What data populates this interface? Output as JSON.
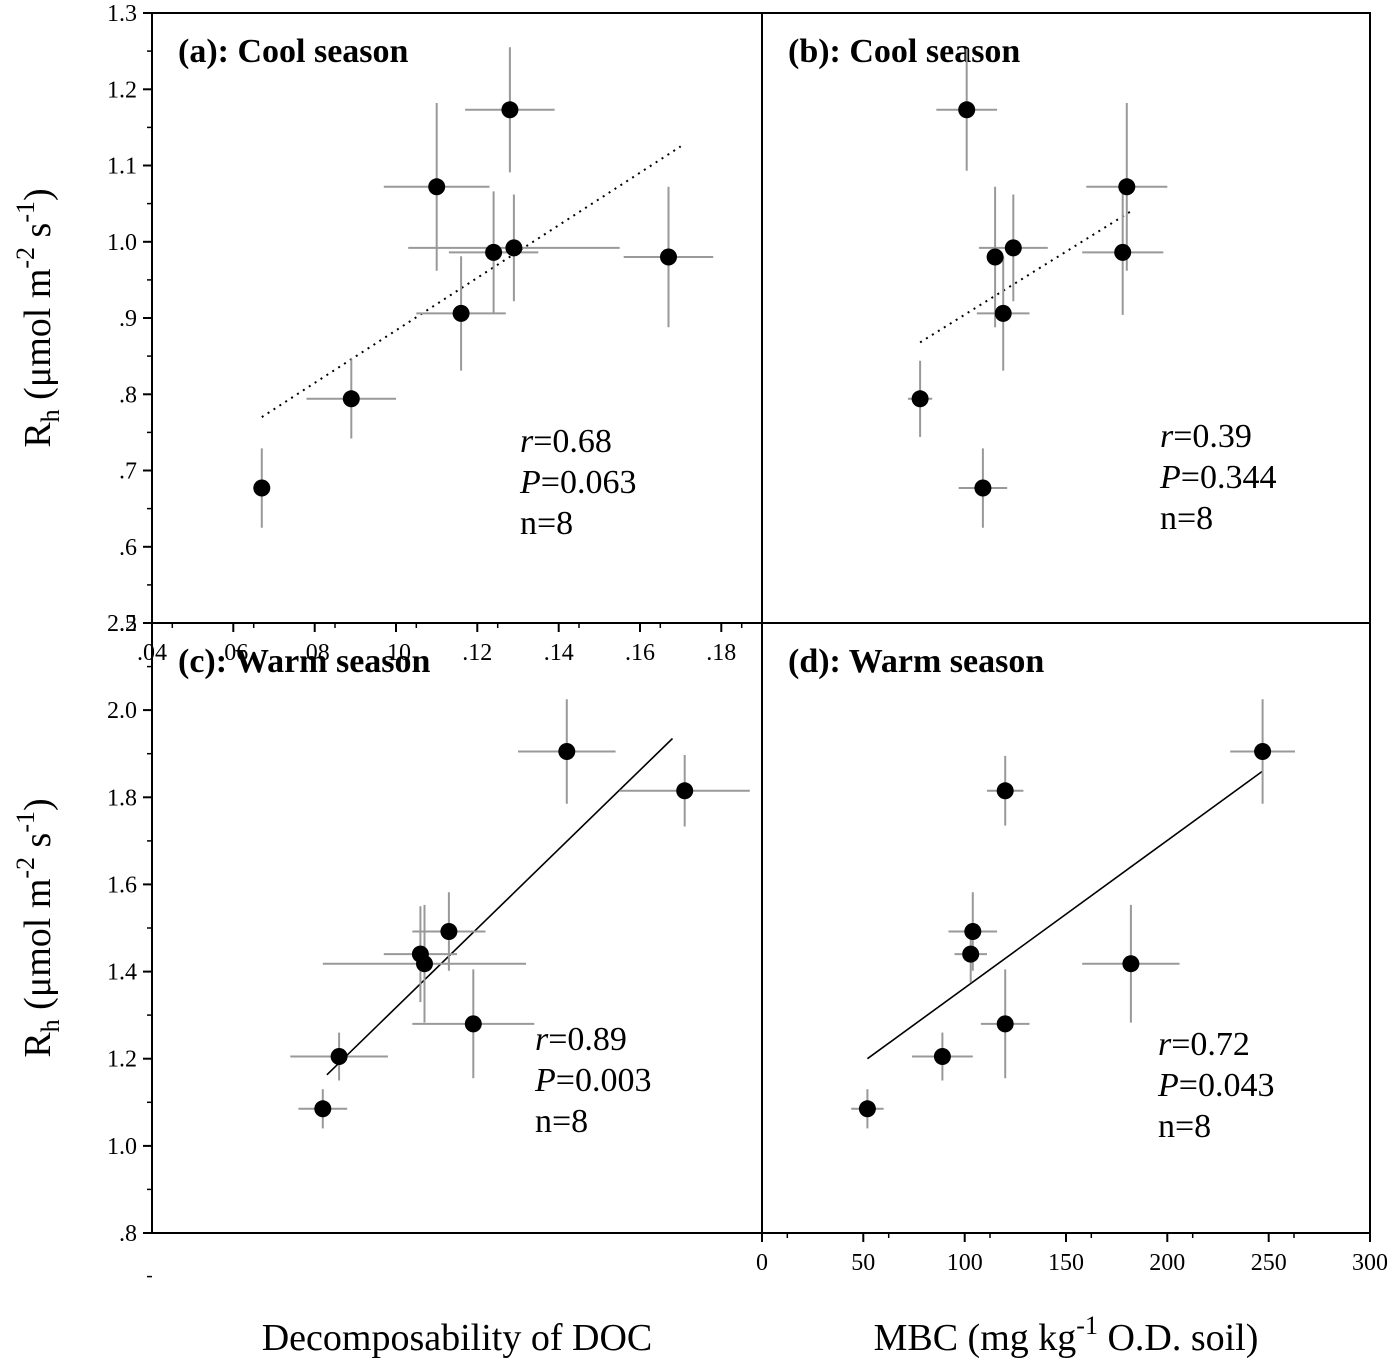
{
  "chart_data": [
    {
      "id": "a",
      "type": "scatter",
      "title": "(a): Cool season",
      "xlim": [
        0.04,
        0.19
      ],
      "ylim": [
        0.5,
        1.3
      ],
      "xticks": [
        0.04,
        0.06,
        0.08,
        0.1,
        0.12,
        0.14,
        0.16,
        0.18
      ],
      "xtick_labels": [
        ".04",
        ".06",
        ".08",
        ".10",
        ".12",
        ".14",
        ".16",
        ".18"
      ],
      "yticks": [
        0.6,
        0.7,
        0.8,
        0.9,
        1.0,
        1.1,
        1.2,
        1.3
      ],
      "ytick_labels": [
        ".6",
        ".7",
        ".8",
        ".9",
        "1.0",
        "1.1",
        "1.2",
        "1.3"
      ],
      "points": [
        {
          "x": 0.067,
          "y": 0.677,
          "xerr": 0.0015,
          "yerr": 0.052
        },
        {
          "x": 0.089,
          "y": 0.794,
          "xerr": 0.011,
          "yerr": 0.052
        },
        {
          "x": 0.11,
          "y": 1.072,
          "xerr": 0.013,
          "yerr": 0.11
        },
        {
          "x": 0.128,
          "y": 1.173,
          "xerr": 0.011,
          "yerr": 0.082
        },
        {
          "x": 0.124,
          "y": 0.986,
          "xerr": 0.011,
          "yerr": 0.08
        },
        {
          "x": 0.129,
          "y": 0.992,
          "xerr": 0.026,
          "yerr": 0.07
        },
        {
          "x": 0.116,
          "y": 0.906,
          "xerr": 0.011,
          "yerr": 0.075
        },
        {
          "x": 0.167,
          "y": 0.98,
          "xerr": 0.011,
          "yerr": 0.092
        }
      ],
      "fit": {
        "style": "dotted",
        "x": [
          0.067,
          0.17
        ],
        "y": [
          0.77,
          1.125
        ]
      },
      "stats": {
        "r": "0.68",
        "P": "0.063",
        "n": "n=8"
      }
    },
    {
      "id": "b",
      "type": "scatter",
      "title": "(b): Cool season",
      "xlim": [
        0,
        300
      ],
      "ylim": [
        0.5,
        1.3
      ],
      "points": [
        {
          "x": 78,
          "y": 0.794,
          "xerr": 6,
          "yerr": 0.05
        },
        {
          "x": 109,
          "y": 0.677,
          "xerr": 12,
          "yerr": 0.052
        },
        {
          "x": 101,
          "y": 1.173,
          "xerr": 15,
          "yerr": 0.08
        },
        {
          "x": 115,
          "y": 0.98,
          "xerr": 4,
          "yerr": 0.092
        },
        {
          "x": 124,
          "y": 0.992,
          "xerr": 17,
          "yerr": 0.07
        },
        {
          "x": 119,
          "y": 0.906,
          "xerr": 13,
          "yerr": 0.075
        },
        {
          "x": 180,
          "y": 1.072,
          "xerr": 20,
          "yerr": 0.11
        },
        {
          "x": 178,
          "y": 0.986,
          "xerr": 20,
          "yerr": 0.082
        }
      ],
      "fit": {
        "style": "dotted",
        "x": [
          78,
          182
        ],
        "y": [
          0.868,
          1.04
        ]
      },
      "stats": {
        "r": "0.39",
        "P": "0.344",
        "n": "n=8"
      }
    },
    {
      "id": "c",
      "type": "scatter",
      "title": "(c): Warm season",
      "xlim": [
        0.04,
        0.19
      ],
      "ylim": [
        0.8,
        2.2
      ],
      "yticks": [
        0.8,
        1.0,
        1.2,
        1.4,
        1.6,
        1.8,
        2.0,
        2.2
      ],
      "ytick_labels": [
        ".8",
        "1.0",
        "1.2",
        "1.4",
        "1.6",
        "1.8",
        "2.0",
        "2.2"
      ],
      "points": [
        {
          "x": 0.082,
          "y": 1.085,
          "xerr": 0.006,
          "yerr": 0.045
        },
        {
          "x": 0.086,
          "y": 1.205,
          "xerr": 0.012,
          "yerr": 0.055
        },
        {
          "x": 0.106,
          "y": 1.44,
          "xerr": 0.009,
          "yerr": 0.11
        },
        {
          "x": 0.107,
          "y": 1.418,
          "xerr": 0.025,
          "yerr": 0.135
        },
        {
          "x": 0.113,
          "y": 1.492,
          "xerr": 0.009,
          "yerr": 0.09
        },
        {
          "x": 0.119,
          "y": 1.28,
          "xerr": 0.015,
          "yerr": 0.125
        },
        {
          "x": 0.142,
          "y": 1.905,
          "xerr": 0.012,
          "yerr": 0.12
        },
        {
          "x": 0.171,
          "y": 1.815,
          "xerr": 0.016,
          "yerr": 0.082
        }
      ],
      "fit": {
        "style": "solid",
        "x": [
          0.083,
          0.168
        ],
        "y": [
          1.163,
          1.935
        ]
      },
      "stats": {
        "r": "0.89",
        "P": "0.003",
        "n": "n=8"
      }
    },
    {
      "id": "d",
      "type": "scatter",
      "title": "(d): Warm season",
      "xlim": [
        0,
        300
      ],
      "ylim": [
        0.8,
        2.2
      ],
      "xticks": [
        0,
        50,
        100,
        150,
        200,
        250,
        300
      ],
      "xtick_labels": [
        "0",
        "50",
        "100",
        "150",
        "200",
        "250",
        "300"
      ],
      "points": [
        {
          "x": 52,
          "y": 1.085,
          "xerr": 8,
          "yerr": 0.045
        },
        {
          "x": 89,
          "y": 1.205,
          "xerr": 15,
          "yerr": 0.055
        },
        {
          "x": 103,
          "y": 1.44,
          "xerr": 8,
          "yerr": 0.065
        },
        {
          "x": 104,
          "y": 1.492,
          "xerr": 12,
          "yerr": 0.09
        },
        {
          "x": 120,
          "y": 1.815,
          "xerr": 9,
          "yerr": 0.08
        },
        {
          "x": 120,
          "y": 1.28,
          "xerr": 12,
          "yerr": 0.125
        },
        {
          "x": 182,
          "y": 1.418,
          "xerr": 24,
          "yerr": 0.135
        },
        {
          "x": 247,
          "y": 1.905,
          "xerr": 16,
          "yerr": 0.12
        }
      ],
      "fit": {
        "style": "solid",
        "x": [
          52,
          247
        ],
        "y": [
          1.2,
          1.86
        ]
      },
      "stats": {
        "r": "0.72",
        "P": "0.043",
        "n": "n=8"
      }
    }
  ],
  "axes": {
    "y_label_main": "R",
    "y_label_sub": "h",
    "y_label_rest_1": " (μmol m",
    "y_label_sup_1": "-2",
    "y_label_rest_2": " s",
    "y_label_sup_2": "-1",
    "y_label_rest_3": ")",
    "x_label_left": "Decomposability of DOC",
    "x_label_right_1": "MBC (mg kg",
    "x_label_right_sup": "-1",
    "x_label_right_2": " O.D. soil)"
  },
  "shared_ticks": {
    "left_bottom_cool_tick_label": "1.3",
    "junction_label_cool": ".5",
    "junction_label_warm": "2.2"
  },
  "stat_labels": {
    "r": "r",
    "P": "P",
    "eq": "="
  },
  "colors": {
    "points": "#000000",
    "errorbars": "#999999",
    "axes": "#000000",
    "fit": "#000000"
  }
}
